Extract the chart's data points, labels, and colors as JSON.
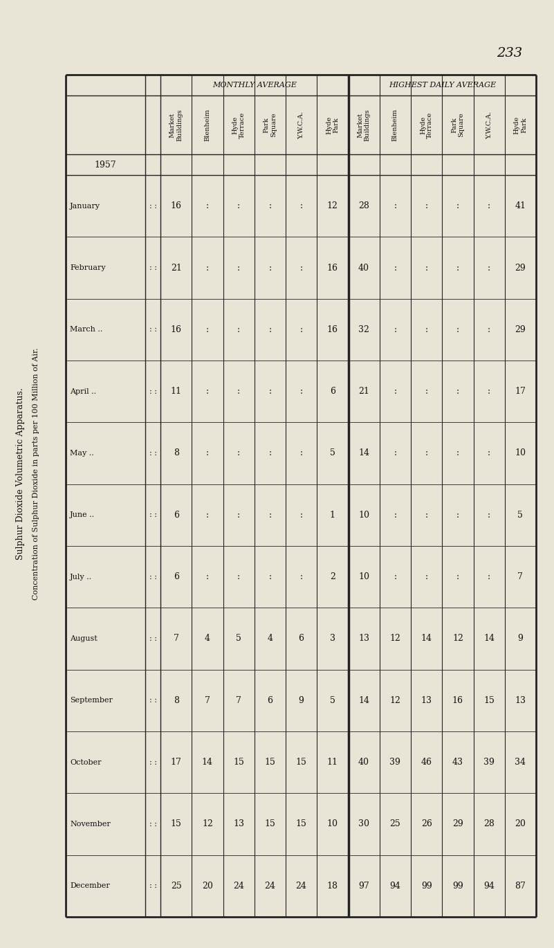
{
  "page_number": "233",
  "title_v1": "Sulphur Dioxide Volumetric Apparatus.",
  "title_v2": "Concentration of Sulphur Dioxide in parts per 100 Million of Air.",
  "year": "1957",
  "months": [
    "January",
    "February",
    "March ..",
    "April ..",
    "May ..",
    "June ..",
    "July ..",
    "August",
    "September",
    "October",
    "November",
    "December"
  ],
  "monthly_subheaders": [
    "Market\nBuildings",
    "Blenheim",
    "Hyde\nTerrace",
    "Park\nSquare",
    "Y.W.C.A.",
    "Hyde\nPark"
  ],
  "highest_subheaders": [
    "Market\nBuildings",
    "Blenheim",
    "Hyde\nTerrace",
    "Park\nSquare",
    "Y.W.C.A.",
    "Hyde\nPark"
  ],
  "monthly_data": [
    [
      "16",
      ":",
      ":",
      ":",
      ":",
      "12"
    ],
    [
      "21",
      ":",
      ":",
      ":",
      ":",
      "16"
    ],
    [
      "16",
      ":",
      ":",
      ":",
      ":",
      "16"
    ],
    [
      "11",
      ":",
      ":",
      ":",
      ":",
      "6"
    ],
    [
      "8",
      ":",
      ":",
      ":",
      ":",
      "5"
    ],
    [
      "6",
      ":",
      ":",
      ":",
      ":",
      "1"
    ],
    [
      "6",
      ":",
      ":",
      ":",
      ":",
      "2"
    ],
    [
      "7",
      "4",
      "5",
      "4",
      "6",
      "3"
    ],
    [
      "8",
      "7",
      "7",
      "6",
      "9",
      "5"
    ],
    [
      "17",
      "14",
      "15",
      "15",
      "15",
      "11"
    ],
    [
      "15",
      "12",
      "13",
      "15",
      "15",
      "10"
    ],
    [
      "25",
      "20",
      "24",
      "24",
      "24",
      "18"
    ]
  ],
  "highest_data": [
    [
      "28",
      ":",
      ":",
      ":",
      ":",
      "41"
    ],
    [
      "40",
      ":",
      ":",
      ":",
      ":",
      "29"
    ],
    [
      "32",
      ":",
      ":",
      ":",
      ":",
      "29"
    ],
    [
      "21",
      ":",
      ":",
      ":",
      ":",
      "17"
    ],
    [
      "14",
      ":",
      ":",
      ":",
      ":",
      "10"
    ],
    [
      "10",
      ":",
      ":",
      ":",
      ":",
      "5"
    ],
    [
      "10",
      ":",
      ":",
      ":",
      ":",
      "7"
    ],
    [
      "13",
      "12",
      "14",
      "12",
      "14",
      "9"
    ],
    [
      "14",
      "12",
      "13",
      "16",
      "15",
      "13"
    ],
    [
      "40",
      "39",
      "46",
      "43",
      "39",
      "34"
    ],
    [
      "30",
      "25",
      "26",
      "29",
      "28",
      "20"
    ],
    [
      "97",
      "94",
      "99",
      "99",
      "94",
      "87"
    ]
  ],
  "bg_color": "#e8e4d6",
  "text_color": "#111111",
  "line_color": "#222222"
}
